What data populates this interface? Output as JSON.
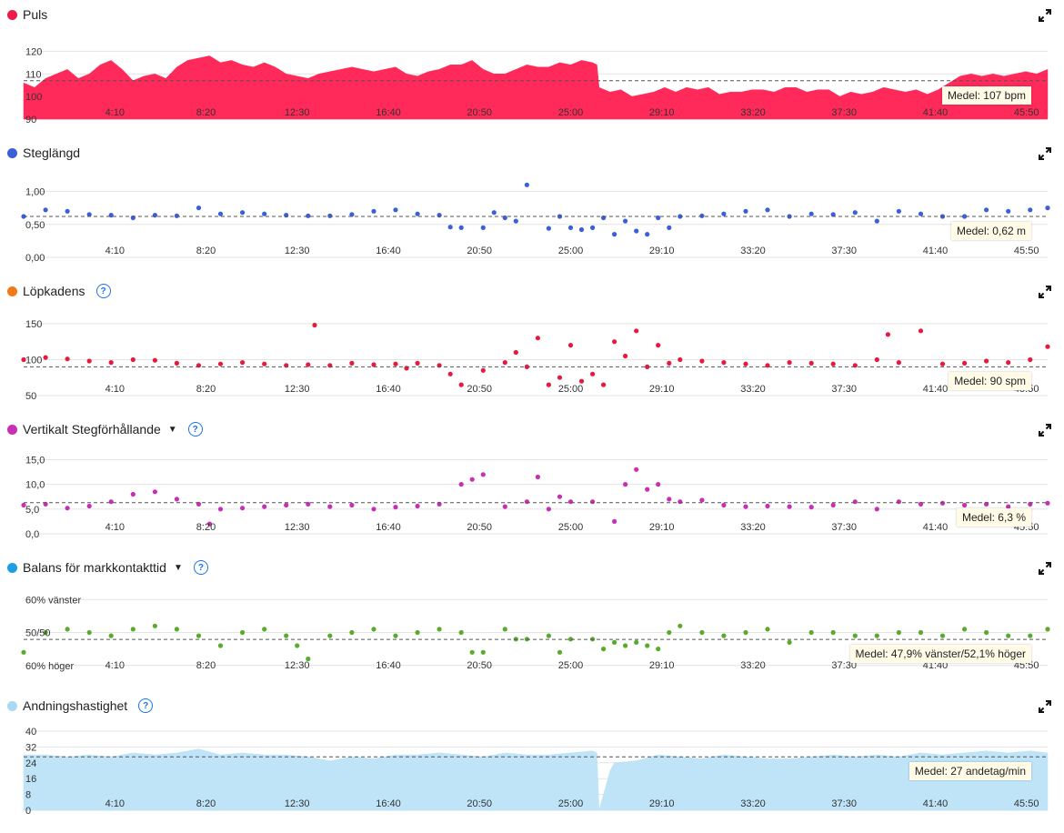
{
  "x_ticks": [
    "4:10",
    "8:20",
    "12:30",
    "16:40",
    "20:50",
    "25:00",
    "29:10",
    "33:20",
    "37:30",
    "41:40",
    "45:50"
  ],
  "x_tick_minutes": [
    4.1667,
    8.3333,
    12.5,
    16.6667,
    20.8333,
    25,
    29.1667,
    33.3333,
    37.5,
    41.6667,
    45.8333
  ],
  "x_range_minutes": [
    0,
    46.8
  ],
  "panels": [
    {
      "title": "Puls",
      "dot_color": "#f0194c",
      "help": false,
      "dropdown": false,
      "avg_label": "Medel: 107 bpm",
      "chart_data": {
        "type": "area",
        "color": "#ff2a5a",
        "ylim": [
          90,
          125
        ],
        "y_ticks": [
          "120",
          "110",
          "100",
          "90"
        ],
        "y_tick_values": [
          120,
          110,
          100,
          90
        ],
        "avg": 107,
        "x": [
          0,
          0.5,
          1,
          1.5,
          2,
          2.5,
          3,
          3.5,
          4,
          4.5,
          5,
          5.5,
          6,
          6.5,
          7,
          7.5,
          8,
          8.5,
          9,
          9.5,
          10,
          10.5,
          11,
          11.5,
          12,
          12.5,
          13,
          13.5,
          14,
          14.5,
          15,
          15.5,
          16,
          16.5,
          17,
          17.5,
          18,
          18.5,
          19,
          19.5,
          20,
          20.5,
          21,
          21.5,
          22,
          22.5,
          23,
          23.5,
          24,
          24.5,
          25,
          25.5,
          26,
          26.2,
          26.3,
          26.8,
          27.3,
          27.8,
          28.3,
          28.8,
          29.3,
          29.8,
          30.3,
          30.8,
          31.3,
          31.8,
          32.3,
          32.8,
          33.3,
          33.8,
          34.3,
          34.8,
          35.3,
          35.8,
          36.3,
          36.8,
          37.3,
          37.8,
          38.3,
          38.8,
          39.3,
          39.8,
          40.3,
          40.8,
          41.3,
          41.8,
          42.3,
          42.8,
          43.3,
          43.8,
          44.3,
          44.8,
          45.3,
          45.8,
          46.3,
          46.8
        ],
        "values": [
          106,
          104,
          108,
          110,
          112,
          108,
          110,
          114,
          116,
          112,
          107,
          109,
          110,
          108,
          113,
          116,
          117,
          118,
          115,
          116,
          114,
          113,
          115,
          113,
          110,
          109,
          108,
          110,
          111,
          112,
          113,
          112,
          111,
          112,
          113,
          110,
          109,
          111,
          112,
          114,
          114,
          116,
          112,
          110,
          110,
          112,
          114,
          113,
          113,
          115,
          114,
          116,
          115,
          114,
          104,
          102,
          103,
          100,
          101,
          102,
          104,
          102,
          104,
          103,
          104,
          101,
          102,
          102,
          103,
          103,
          102,
          104,
          104,
          102,
          103,
          103,
          100,
          102,
          101,
          102,
          104,
          103,
          102,
          103,
          101,
          103,
          106,
          109,
          110,
          109,
          110,
          109,
          110,
          111,
          110,
          112
        ]
      }
    },
    {
      "title": "Steglängd",
      "dot_color": "#3b5fd9",
      "help": false,
      "dropdown": false,
      "avg_label": "Medel: 0,62 m",
      "chart_data": {
        "type": "scatter",
        "color": "#3b5fd9",
        "ylim": [
          0,
          1.2
        ],
        "y_ticks": [
          "1,00",
          "0,50",
          "0,00"
        ],
        "y_tick_values": [
          1.0,
          0.5,
          0.0
        ],
        "avg": 0.62,
        "x": [
          0,
          1,
          2,
          3,
          4,
          5,
          6,
          7,
          8,
          9,
          10,
          11,
          12,
          13,
          14,
          15,
          16,
          17,
          18,
          19,
          19.5,
          20,
          21,
          21.5,
          22,
          22.5,
          23,
          24,
          24.5,
          25,
          25.5,
          26,
          26.5,
          27,
          27.5,
          28,
          28.5,
          29,
          29.5,
          30,
          31,
          32,
          33,
          34,
          35,
          36,
          37,
          38,
          39,
          40,
          41,
          42,
          43,
          44,
          45,
          46,
          46.8
        ],
        "values": [
          0.62,
          0.72,
          0.7,
          0.65,
          0.64,
          0.6,
          0.64,
          0.63,
          0.75,
          0.66,
          0.68,
          0.66,
          0.64,
          0.63,
          0.63,
          0.65,
          0.7,
          0.72,
          0.66,
          0.64,
          0.46,
          0.45,
          0.45,
          0.68,
          0.6,
          0.55,
          1.1,
          0.44,
          0.62,
          0.45,
          0.42,
          0.45,
          0.6,
          0.35,
          0.55,
          0.4,
          0.35,
          0.6,
          0.45,
          0.62,
          0.63,
          0.66,
          0.7,
          0.72,
          0.62,
          0.66,
          0.65,
          0.68,
          0.55,
          0.7,
          0.66,
          0.62,
          0.62,
          0.72,
          0.7,
          0.72,
          0.75
        ]
      }
    },
    {
      "title": "Löpkadens",
      "dot_color": "#f07a1a",
      "help": true,
      "dropdown": false,
      "avg_label": "Medel: 90 spm",
      "chart_data": {
        "type": "scatter",
        "color": "#e8193d",
        "ylim": [
          50,
          160
        ],
        "y_ticks": [
          "150",
          "100",
          "50"
        ],
        "y_tick_values": [
          150,
          100,
          50
        ],
        "avg": 90,
        "x": [
          0,
          1,
          2,
          3,
          4,
          5,
          6,
          7,
          8,
          9,
          10,
          11,
          12,
          13,
          13.3,
          14,
          15,
          16,
          17,
          17.5,
          18,
          19,
          19.5,
          20,
          21,
          22,
          22.5,
          23,
          23.5,
          24,
          24.5,
          25,
          25.5,
          26,
          26.5,
          27,
          27.5,
          28,
          28.5,
          29,
          29.5,
          30,
          31,
          32,
          33,
          34,
          35,
          36,
          37,
          38,
          39,
          39.5,
          40,
          41,
          42,
          43,
          44,
          45,
          46,
          46.8
        ],
        "values": [
          100,
          103,
          101,
          98,
          96,
          100,
          99,
          95,
          92,
          94,
          96,
          94,
          92,
          93,
          148,
          92,
          95,
          93,
          94,
          88,
          95,
          92,
          80,
          65,
          85,
          96,
          110,
          90,
          130,
          65,
          75,
          120,
          70,
          80,
          65,
          125,
          105,
          140,
          90,
          120,
          95,
          100,
          98,
          96,
          94,
          92,
          96,
          95,
          94,
          92,
          100,
          135,
          96,
          140,
          94,
          95,
          98,
          96,
          100,
          118
        ]
      }
    },
    {
      "title": "Vertikalt Stegförhållande",
      "dot_color": "#c730b4",
      "help": true,
      "dropdown": true,
      "avg_label": "Medel: 6,3 %",
      "chart_data": {
        "type": "scatter",
        "color": "#c730b4",
        "ylim": [
          0,
          16
        ],
        "y_ticks": [
          "15,0",
          "10,0",
          "5,0",
          "0,0"
        ],
        "y_tick_values": [
          15,
          10,
          5,
          0
        ],
        "avg": 6.3,
        "x": [
          0,
          1,
          2,
          3,
          4,
          5,
          6,
          7,
          8,
          8.5,
          9,
          10,
          11,
          12,
          13,
          14,
          15,
          16,
          17,
          18,
          19,
          20,
          20.5,
          21,
          22,
          23,
          23.5,
          24,
          24.5,
          25,
          26,
          27,
          27.5,
          28,
          28.5,
          29,
          29.5,
          30,
          31,
          32,
          33,
          34,
          35,
          36,
          37,
          38,
          39,
          40,
          41,
          42,
          43,
          44,
          45,
          46,
          46.8
        ],
        "values": [
          5.8,
          6.0,
          5.2,
          5.6,
          6.5,
          8.0,
          8.5,
          7.0,
          6.0,
          2.0,
          5.0,
          5.2,
          5.5,
          5.8,
          6.0,
          5.5,
          5.8,
          5.0,
          5.4,
          5.6,
          6.0,
          10.0,
          11.0,
          12.0,
          5.5,
          6.5,
          11.5,
          5.0,
          7.5,
          6.5,
          6.5,
          2.5,
          10.0,
          13.0,
          9.0,
          10.0,
          7.0,
          6.5,
          6.8,
          5.8,
          5.5,
          5.6,
          5.5,
          5.4,
          5.8,
          6.5,
          5.0,
          6.5,
          6.0,
          6.2,
          5.8,
          6.0,
          5.5,
          6.0,
          6.2
        ]
      }
    },
    {
      "title": "Balans för markkontakttid",
      "dot_color": "#1e9fe0",
      "help": true,
      "dropdown": true,
      "avg_label": "Medel: 47,9% vänster/52,1% höger",
      "chart_data": {
        "type": "scatter",
        "color": "#5aab2d",
        "ylim": [
          38,
          62
        ],
        "y_ticks": [
          "60% vänster",
          "50/50",
          "60% höger"
        ],
        "y_tick_values": [
          60,
          50,
          40
        ],
        "avg": 47.9,
        "x": [
          0,
          1,
          2,
          3,
          4,
          5,
          6,
          7,
          8,
          9,
          10,
          11,
          12,
          12.5,
          13,
          14,
          15,
          16,
          17,
          18,
          19,
          20,
          20.5,
          21,
          22,
          22.5,
          23,
          24,
          24.5,
          25,
          26,
          26.5,
          27,
          27.5,
          28,
          28.5,
          29,
          29.5,
          30,
          31,
          32,
          33,
          34,
          35,
          36,
          37,
          38,
          39,
          40,
          41,
          42,
          43,
          44,
          45,
          46,
          46.8
        ],
        "values": [
          44,
          50,
          51,
          50,
          49,
          51,
          52,
          51,
          49,
          46,
          50,
          51,
          49,
          46,
          42,
          49,
          50,
          51,
          49,
          50,
          51,
          50,
          44,
          44,
          51,
          48,
          48,
          49,
          44,
          48,
          48,
          45,
          47,
          46,
          47,
          46,
          45,
          50,
          52,
          50,
          49,
          50,
          51,
          47,
          50,
          50,
          49,
          49,
          50,
          50,
          49,
          51,
          50,
          49,
          49,
          51
        ]
      }
    },
    {
      "title": "Andningshastighet",
      "dot_color": "#a9d9f5",
      "help": true,
      "dropdown": false,
      "avg_label": "Medel: 27 andetag/min",
      "chart_data": {
        "type": "area",
        "color": "#bfe4f7",
        "ylim": [
          0,
          40
        ],
        "y_ticks": [
          "40",
          "32",
          "24",
          "16",
          "8",
          "0"
        ],
        "y_tick_values": [
          40,
          32,
          24,
          16,
          8,
          0
        ],
        "avg": 27,
        "x": [
          0,
          1,
          2,
          3,
          4,
          5,
          6,
          7,
          8,
          9,
          10,
          11,
          12,
          13,
          14,
          15,
          16,
          17,
          18,
          19,
          20,
          21,
          22,
          23,
          24,
          25,
          26,
          26.2,
          26.3,
          26.8,
          27,
          28,
          29,
          30,
          31,
          32,
          33,
          34,
          35,
          36,
          37,
          38,
          39,
          40,
          41,
          42,
          43,
          44,
          45,
          46,
          46.8
        ],
        "values": [
          28,
          28,
          27,
          28,
          27,
          29,
          28,
          29,
          31,
          28,
          29,
          28,
          28,
          27,
          25,
          27,
          26,
          28,
          28,
          29,
          28,
          27,
          29,
          28,
          28,
          29,
          30,
          29,
          0,
          20,
          24,
          25,
          28,
          27,
          26,
          28,
          27,
          26,
          26,
          27,
          28,
          27,
          28,
          27,
          29,
          28,
          29,
          30,
          29,
          30,
          29
        ]
      }
    }
  ]
}
